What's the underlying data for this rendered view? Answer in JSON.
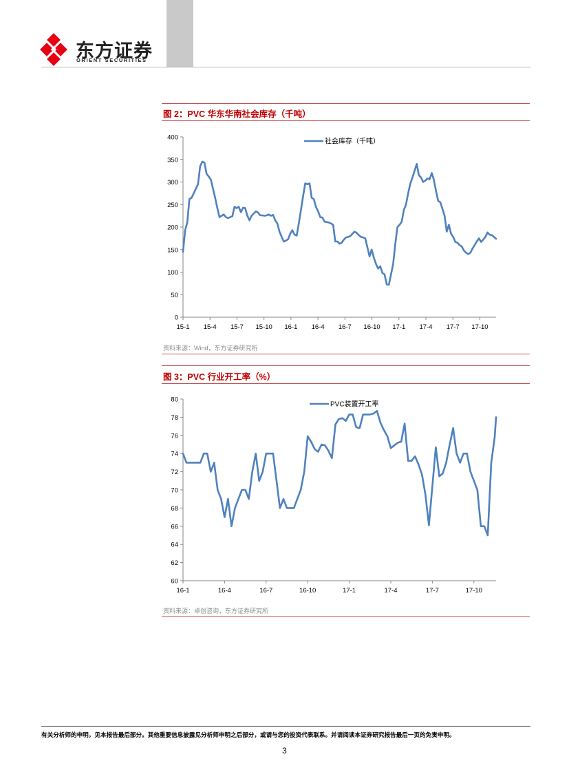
{
  "header": {
    "logo": {
      "name_cn": "东方证券",
      "name_en": "ORIENT SECURITIES"
    },
    "colors": {
      "logo_red": "#e60012",
      "rule_red": "#c0504d",
      "series_blue": "#4f81bd",
      "gray_tab": "#c9c9c9"
    }
  },
  "figures": [
    {
      "title": "图 2：PVC 华东华南社会库存（千吨）",
      "source": "资料来源：Wind，东方证券研究所"
    },
    {
      "title": "图 3：PVC 行业开工率（%）",
      "source": "资料来源：卓创咨询，东方证券研究所"
    }
  ],
  "chart_data": [
    {
      "type": "line",
      "title": "图 2：PVC 华东华南社会库存（千吨）",
      "legend": [
        "社会库存（千吨）"
      ],
      "legend_position": "top-center",
      "ylim": [
        0,
        400
      ],
      "yticks": [
        0,
        50,
        100,
        150,
        200,
        250,
        300,
        350,
        400
      ],
      "xlim": [
        0,
        116
      ],
      "xticks": [
        {
          "x": 0,
          "label": "15-1"
        },
        {
          "x": 10,
          "label": "15-4"
        },
        {
          "x": 20,
          "label": "15-7"
        },
        {
          "x": 30,
          "label": "15-10"
        },
        {
          "x": 40,
          "label": "16-1"
        },
        {
          "x": 50,
          "label": "16-4"
        },
        {
          "x": 60,
          "label": "16-7"
        },
        {
          "x": 70,
          "label": "16-10"
        },
        {
          "x": 80,
          "label": "17-1"
        },
        {
          "x": 90,
          "label": "17-4"
        },
        {
          "x": 100,
          "label": "17-7"
        },
        {
          "x": 110,
          "label": "17-10"
        }
      ],
      "series": [
        {
          "name": "社会库存（千吨）",
          "values": [
            145,
            193,
            210,
            262,
            265,
            275,
            285,
            295,
            335,
            345,
            343,
            318,
            312,
            305,
            285,
            265,
            242,
            222,
            225,
            228,
            222,
            220,
            222,
            224,
            245,
            242,
            245,
            233,
            243,
            242,
            225,
            215,
            225,
            230,
            235,
            232,
            226,
            226,
            225,
            226,
            228,
            225,
            227,
            215,
            208,
            190,
            178,
            168,
            170,
            173,
            185,
            193,
            183,
            181,
            208,
            238,
            268,
            297,
            295,
            297,
            265,
            262,
            245,
            235,
            222,
            221,
            212,
            211,
            210,
            208,
            205,
            168,
            168,
            163,
            165,
            172,
            177,
            178,
            180,
            185,
            190,
            187,
            182,
            178,
            177,
            175,
            155,
            135,
            150,
            132,
            118,
            108,
            113,
            98,
            95,
            73,
            72,
            95,
            118,
            162,
            200,
            205,
            212,
            238,
            250,
            275,
            296,
            310,
            325,
            340,
            315,
            310,
            300,
            303,
            308,
            306,
            320,
            305,
            280,
            258,
            255,
            240,
            225,
            190,
            205,
            185,
            178,
            167,
            165,
            160,
            157,
            148,
            143,
            140,
            143,
            152,
            160,
            168,
            175,
            167,
            172,
            178,
            188,
            183,
            182,
            178,
            174
          ]
        }
      ]
    },
    {
      "type": "line",
      "title": "图 3：PVC 行业开工率（%）",
      "legend": [
        "PVC装置开工率"
      ],
      "legend_position": "top-center",
      "ylim": [
        60,
        80
      ],
      "yticks": [
        60,
        62,
        64,
        66,
        68,
        70,
        72,
        74,
        76,
        78,
        80
      ],
      "xlim": [
        0,
        22.6
      ],
      "xticks": [
        {
          "x": 0,
          "label": "16-1"
        },
        {
          "x": 3,
          "label": "16-4"
        },
        {
          "x": 6,
          "label": "16-7"
        },
        {
          "x": 9,
          "label": "16-10"
        },
        {
          "x": 12,
          "label": "17-1"
        },
        {
          "x": 15,
          "label": "17-4"
        },
        {
          "x": 18,
          "label": "17-7"
        },
        {
          "x": 21,
          "label": "17-10"
        }
      ],
      "series": [
        {
          "name": "PVC装置开工率",
          "x": [
            0,
            0.25,
            0.5,
            0.75,
            1.0,
            1.25,
            1.5,
            1.75,
            2.0,
            2.25,
            2.5,
            2.75,
            3.0,
            3.25,
            3.5,
            3.75,
            4.0,
            4.25,
            4.5,
            4.75,
            5.0,
            5.25,
            5.5,
            5.75,
            6.0,
            6.25,
            6.5,
            6.75,
            7.0,
            7.25,
            7.5,
            7.75,
            8.0,
            8.25,
            8.5,
            8.75,
            9.0,
            9.25,
            9.5,
            9.75,
            10.0,
            10.25,
            10.5,
            10.75,
            11.0,
            11.25,
            11.5,
            11.75,
            12.0,
            12.25,
            12.5,
            12.75,
            13.0,
            13.25,
            13.5,
            13.75,
            14.0,
            14.25,
            14.5,
            14.75,
            15.0,
            15.25,
            15.5,
            15.75,
            16.0,
            16.25,
            16.5,
            16.75,
            17.0,
            17.25,
            17.5,
            17.75,
            18.0,
            18.25,
            18.5,
            18.75,
            19.0,
            19.25,
            19.5,
            19.75,
            20.0,
            20.25,
            20.5,
            20.75,
            21.0,
            21.25,
            21.5,
            21.75,
            22.0,
            22.25,
            22.5,
            22.6
          ],
          "values": [
            74,
            73,
            73,
            73,
            73,
            73,
            74,
            74,
            72,
            73,
            70,
            69,
            67,
            69,
            66,
            68,
            69,
            70,
            70,
            69,
            72,
            74,
            71,
            72,
            74,
            74,
            74,
            71,
            68,
            69,
            68,
            68,
            68,
            69,
            70,
            72,
            75.9,
            75.3,
            74.5,
            74.2,
            75,
            74.9,
            74.3,
            73.5,
            77.2,
            77.8,
            77.9,
            77.6,
            78.3,
            78.3,
            76.9,
            76.8,
            78.3,
            78.3,
            78.3,
            78.4,
            78.7,
            77.4,
            76.6,
            75.9,
            74.6,
            74.9,
            75.2,
            75.3,
            77.3,
            73.2,
            73.2,
            73.7,
            72.8,
            71.7,
            69.5,
            66.1,
            70.4,
            74.7,
            71.5,
            71.8,
            73,
            75,
            76.8,
            74,
            73,
            74,
            74,
            72,
            71,
            70,
            66,
            66,
            65,
            73,
            75.8,
            78
          ]
        }
      ]
    }
  ],
  "footer": {
    "disclaimer": "有关分析师的申明，见本报告最后部分。其他重要信息披露见分析师申明之后部分，或请与您的投资代表联系。并请阅读本证券研究报告最后一页的免责申明。",
    "page_number": "3"
  }
}
